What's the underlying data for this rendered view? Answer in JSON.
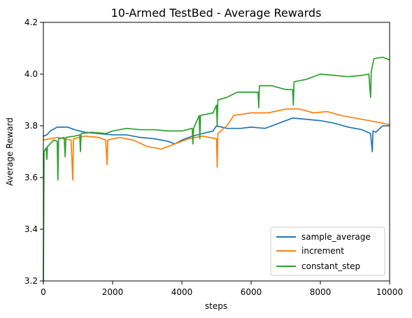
{
  "chart_data": {
    "type": "line",
    "title": "10-Armed TestBed - Average Rewards",
    "xlabel": "steps",
    "ylabel": "Average Reward",
    "xlim": [
      0,
      10000
    ],
    "ylim": [
      3.2,
      4.2
    ],
    "x_ticks": [
      0,
      2000,
      4000,
      6000,
      8000,
      10000
    ],
    "y_ticks": [
      3.2,
      3.4,
      3.6,
      3.8,
      4.0,
      4.2
    ],
    "x_tick_labels": [
      "0",
      "2000",
      "4000",
      "6000",
      "8000",
      "10000"
    ],
    "y_tick_labels": [
      "3.2",
      "3.4",
      "3.6",
      "3.8",
      "4.0",
      "4.2"
    ],
    "grid": false,
    "legend_position": "lower-right",
    "series": [
      {
        "name": "sample_average",
        "color": "#1f77b4",
        "points": [
          [
            0,
            3.76
          ],
          [
            100,
            3.765
          ],
          [
            200,
            3.78
          ],
          [
            400,
            3.795
          ],
          [
            700,
            3.795
          ],
          [
            900,
            3.785
          ],
          [
            1200,
            3.775
          ],
          [
            1600,
            3.77
          ],
          [
            2000,
            3.765
          ],
          [
            2400,
            3.765
          ],
          [
            2800,
            3.755
          ],
          [
            3200,
            3.75
          ],
          [
            3600,
            3.74
          ],
          [
            3800,
            3.73
          ],
          [
            4000,
            3.745
          ],
          [
            4300,
            3.76
          ],
          [
            4600,
            3.77
          ],
          [
            4900,
            3.78
          ],
          [
            5000,
            3.8
          ],
          [
            5300,
            3.79
          ],
          [
            5700,
            3.79
          ],
          [
            6000,
            3.795
          ],
          [
            6400,
            3.79
          ],
          [
            6800,
            3.81
          ],
          [
            7200,
            3.83
          ],
          [
            7600,
            3.825
          ],
          [
            8000,
            3.82
          ],
          [
            8400,
            3.81
          ],
          [
            8800,
            3.795
          ],
          [
            9200,
            3.785
          ],
          [
            9450,
            3.77
          ],
          [
            9500,
            3.7
          ],
          [
            9520,
            3.78
          ],
          [
            9600,
            3.775
          ],
          [
            9800,
            3.8
          ],
          [
            10000,
            3.8
          ]
        ]
      },
      {
        "name": "increment",
        "color": "#ff7f0e",
        "points": [
          [
            0,
            3.745
          ],
          [
            200,
            3.75
          ],
          [
            400,
            3.755
          ],
          [
            600,
            3.75
          ],
          [
            800,
            3.745
          ],
          [
            850,
            3.59
          ],
          [
            870,
            3.75
          ],
          [
            1200,
            3.76
          ],
          [
            1600,
            3.755
          ],
          [
            1800,
            3.745
          ],
          [
            1840,
            3.65
          ],
          [
            1860,
            3.745
          ],
          [
            2200,
            3.755
          ],
          [
            2600,
            3.745
          ],
          [
            3000,
            3.72
          ],
          [
            3400,
            3.71
          ],
          [
            3800,
            3.73
          ],
          [
            4200,
            3.75
          ],
          [
            4600,
            3.76
          ],
          [
            5000,
            3.75
          ],
          [
            5020,
            3.64
          ],
          [
            5040,
            3.77
          ],
          [
            5300,
            3.8
          ],
          [
            5500,
            3.84
          ],
          [
            6000,
            3.85
          ],
          [
            6500,
            3.85
          ],
          [
            7000,
            3.865
          ],
          [
            7400,
            3.865
          ],
          [
            7800,
            3.85
          ],
          [
            8200,
            3.855
          ],
          [
            8600,
            3.84
          ],
          [
            9000,
            3.83
          ],
          [
            9400,
            3.82
          ],
          [
            9800,
            3.81
          ],
          [
            10000,
            3.805
          ]
        ]
      },
      {
        "name": "constant_step",
        "color": "#2ca02c",
        "points": [
          [
            0,
            3.2
          ],
          [
            20,
            3.7
          ],
          [
            80,
            3.715
          ],
          [
            100,
            3.67
          ],
          [
            120,
            3.72
          ],
          [
            300,
            3.745
          ],
          [
            400,
            3.74
          ],
          [
            420,
            3.59
          ],
          [
            440,
            3.75
          ],
          [
            600,
            3.755
          ],
          [
            630,
            3.68
          ],
          [
            650,
            3.755
          ],
          [
            900,
            3.76
          ],
          [
            1050,
            3.765
          ],
          [
            1070,
            3.7
          ],
          [
            1090,
            3.77
          ],
          [
            1400,
            3.775
          ],
          [
            1800,
            3.77
          ],
          [
            2000,
            3.78
          ],
          [
            2400,
            3.79
          ],
          [
            2800,
            3.785
          ],
          [
            3200,
            3.785
          ],
          [
            3600,
            3.78
          ],
          [
            4000,
            3.78
          ],
          [
            4300,
            3.79
          ],
          [
            4320,
            3.73
          ],
          [
            4340,
            3.79
          ],
          [
            4500,
            3.84
          ],
          [
            4520,
            3.75
          ],
          [
            4540,
            3.84
          ],
          [
            4900,
            3.85
          ],
          [
            5000,
            3.88
          ],
          [
            5020,
            3.8
          ],
          [
            5040,
            3.9
          ],
          [
            5300,
            3.91
          ],
          [
            5600,
            3.93
          ],
          [
            6000,
            3.93
          ],
          [
            6200,
            3.93
          ],
          [
            6220,
            3.87
          ],
          [
            6240,
            3.955
          ],
          [
            6600,
            3.955
          ],
          [
            7000,
            3.94
          ],
          [
            7200,
            3.94
          ],
          [
            7220,
            3.88
          ],
          [
            7240,
            3.97
          ],
          [
            7600,
            3.98
          ],
          [
            8000,
            4.0
          ],
          [
            8400,
            3.995
          ],
          [
            8800,
            3.99
          ],
          [
            9200,
            3.995
          ],
          [
            9400,
            4.0
          ],
          [
            9450,
            3.91
          ],
          [
            9470,
            4.01
          ],
          [
            9550,
            4.06
          ],
          [
            9800,
            4.065
          ],
          [
            10000,
            4.055
          ]
        ]
      }
    ]
  }
}
